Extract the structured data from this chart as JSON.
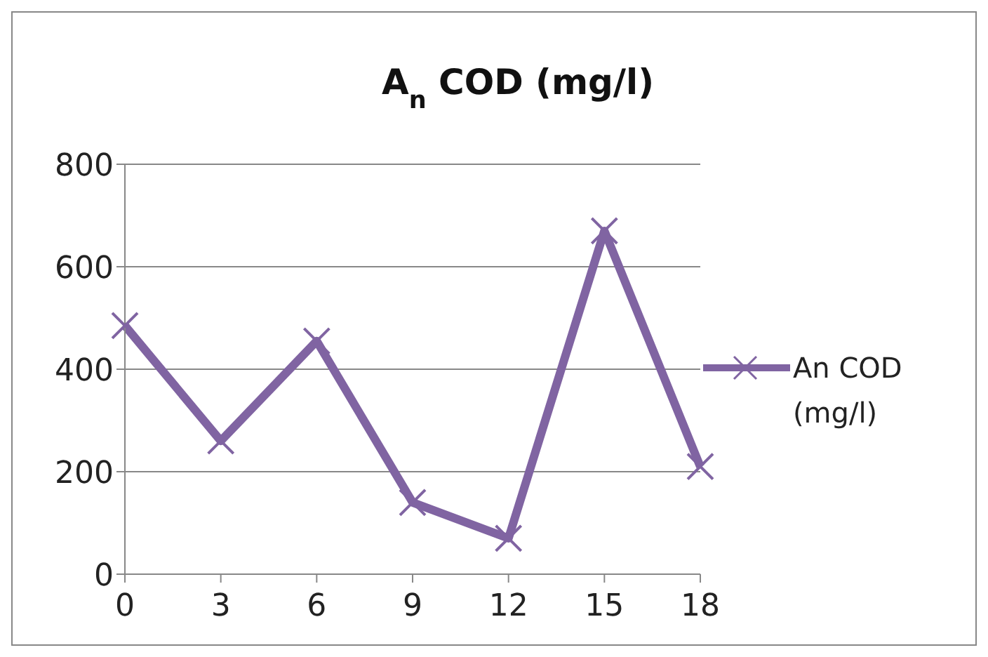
{
  "chart_data": {
    "type": "line",
    "title": "A$_{n}$ COD (mg/l)",
    "x": [
      0,
      3,
      6,
      9,
      12,
      15,
      18
    ],
    "xlim": [
      0,
      18
    ],
    "xticks": [
      0,
      3,
      6,
      9,
      12,
      15,
      18
    ],
    "ylim": [
      0,
      800
    ],
    "yticks": [
      0,
      200,
      400,
      600,
      800
    ],
    "grid": "y",
    "legend": "right",
    "marker": "cross",
    "line_style": "solid",
    "series": [
      {
        "name": "An COD (mg/l)",
        "color": "#8064a2",
        "values": [
          485,
          260,
          455,
          140,
          70,
          670,
          210
        ]
      }
    ]
  }
}
